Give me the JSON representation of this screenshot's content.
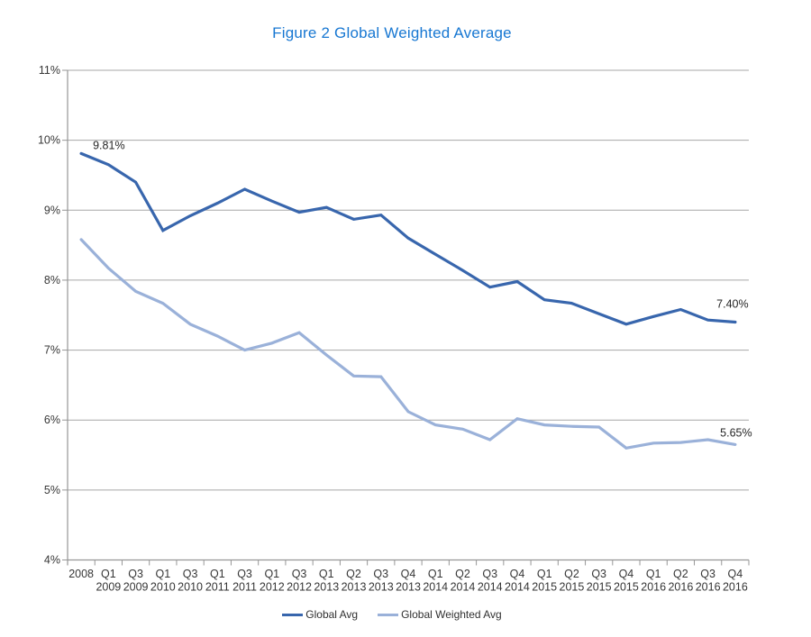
{
  "title": "Figure 2 Global Weighted Average",
  "colors": {
    "title_text": "#1777d2",
    "gridline": "#a7a7a7",
    "axis": "#969696",
    "tick_label": "#363636",
    "data_label": "#262626",
    "series_dark": "#3866ad",
    "series_light": "#9ab1d9"
  },
  "chart_data": {
    "type": "line",
    "title": "Figure 2 Global Weighted Average",
    "categories": [
      "2008",
      "Q1 2009",
      "Q3 2009",
      "Q1 2010",
      "Q3 2010",
      "Q1 2011",
      "Q3 2011",
      "Q1 2012",
      "Q3 2012",
      "Q1 2013",
      "Q2 2013",
      "Q3 2013",
      "Q4 2013",
      "Q1 2014",
      "Q2 2014",
      "Q3 2014",
      "Q4 2014",
      "Q1 2015",
      "Q2 2015",
      "Q3 2015",
      "Q4 2015",
      "Q1 2016",
      "Q2 2016",
      "Q3 2016",
      "Q4 2016"
    ],
    "series": [
      {
        "name": "Global Avg",
        "color": "#3866ad",
        "values": [
          9.81,
          9.65,
          9.4,
          8.71,
          8.92,
          9.1,
          9.3,
          9.13,
          8.97,
          9.04,
          8.87,
          8.93,
          8.6,
          8.37,
          8.14,
          7.9,
          7.98,
          7.72,
          7.67,
          7.52,
          7.37,
          7.48,
          7.58,
          7.43,
          7.4
        ]
      },
      {
        "name": "Global Weighted Avg",
        "color": "#9ab1d9",
        "values": [
          8.58,
          8.17,
          7.84,
          7.67,
          7.37,
          7.2,
          7.0,
          7.1,
          7.25,
          6.93,
          6.63,
          6.62,
          6.12,
          5.93,
          5.87,
          5.72,
          6.02,
          5.93,
          5.91,
          5.9,
          5.6,
          5.67,
          5.68,
          5.72,
          5.65
        ]
      }
    ],
    "ylim": [
      4,
      11
    ],
    "y_tick_step": 1,
    "y_tick_labels": [
      "4%",
      "5%",
      "6%",
      "7%",
      "8%",
      "9%",
      "10%",
      "11%"
    ],
    "grid": "horizontal",
    "legend_position": "bottom",
    "annotations": [
      {
        "series": 0,
        "point": 0,
        "text": "9.81%",
        "placement": "upper-right"
      },
      {
        "series": 0,
        "point": 24,
        "text": "7.40%",
        "placement": "above"
      },
      {
        "series": 1,
        "point": 24,
        "text": "5.65%",
        "placement": "above-near"
      }
    ]
  }
}
